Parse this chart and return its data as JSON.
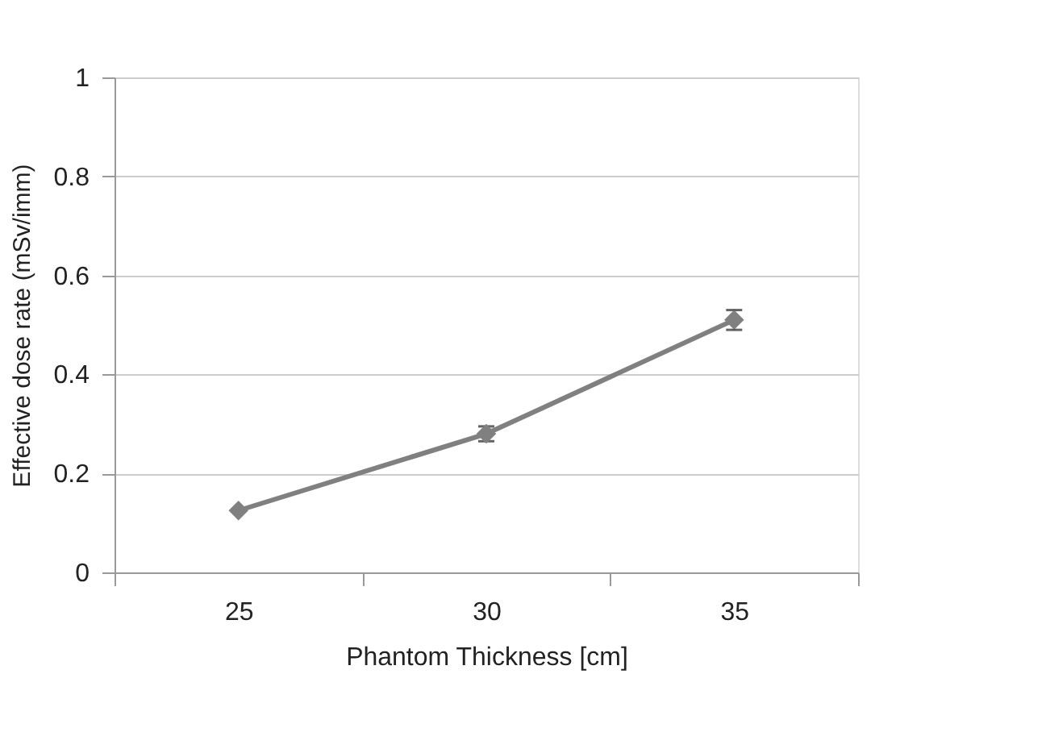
{
  "chart_data": {
    "type": "line",
    "xlabel": "Phantom Thickness [cm]",
    "ylabel": "Effective dose rate (mSv/imm)",
    "categories": [
      "25",
      "30",
      "35"
    ],
    "series": [
      {
        "color": "#808080",
        "values": [
          0.125,
          0.28,
          0.51
        ],
        "errors": [
          null,
          0.015,
          0.02
        ]
      }
    ],
    "ylim": [
      0,
      1
    ],
    "yticks": [
      0,
      0.2,
      0.4,
      0.6,
      0.8,
      1
    ],
    "grid": "y",
    "marker": "diamond",
    "line_style": "solid"
  }
}
